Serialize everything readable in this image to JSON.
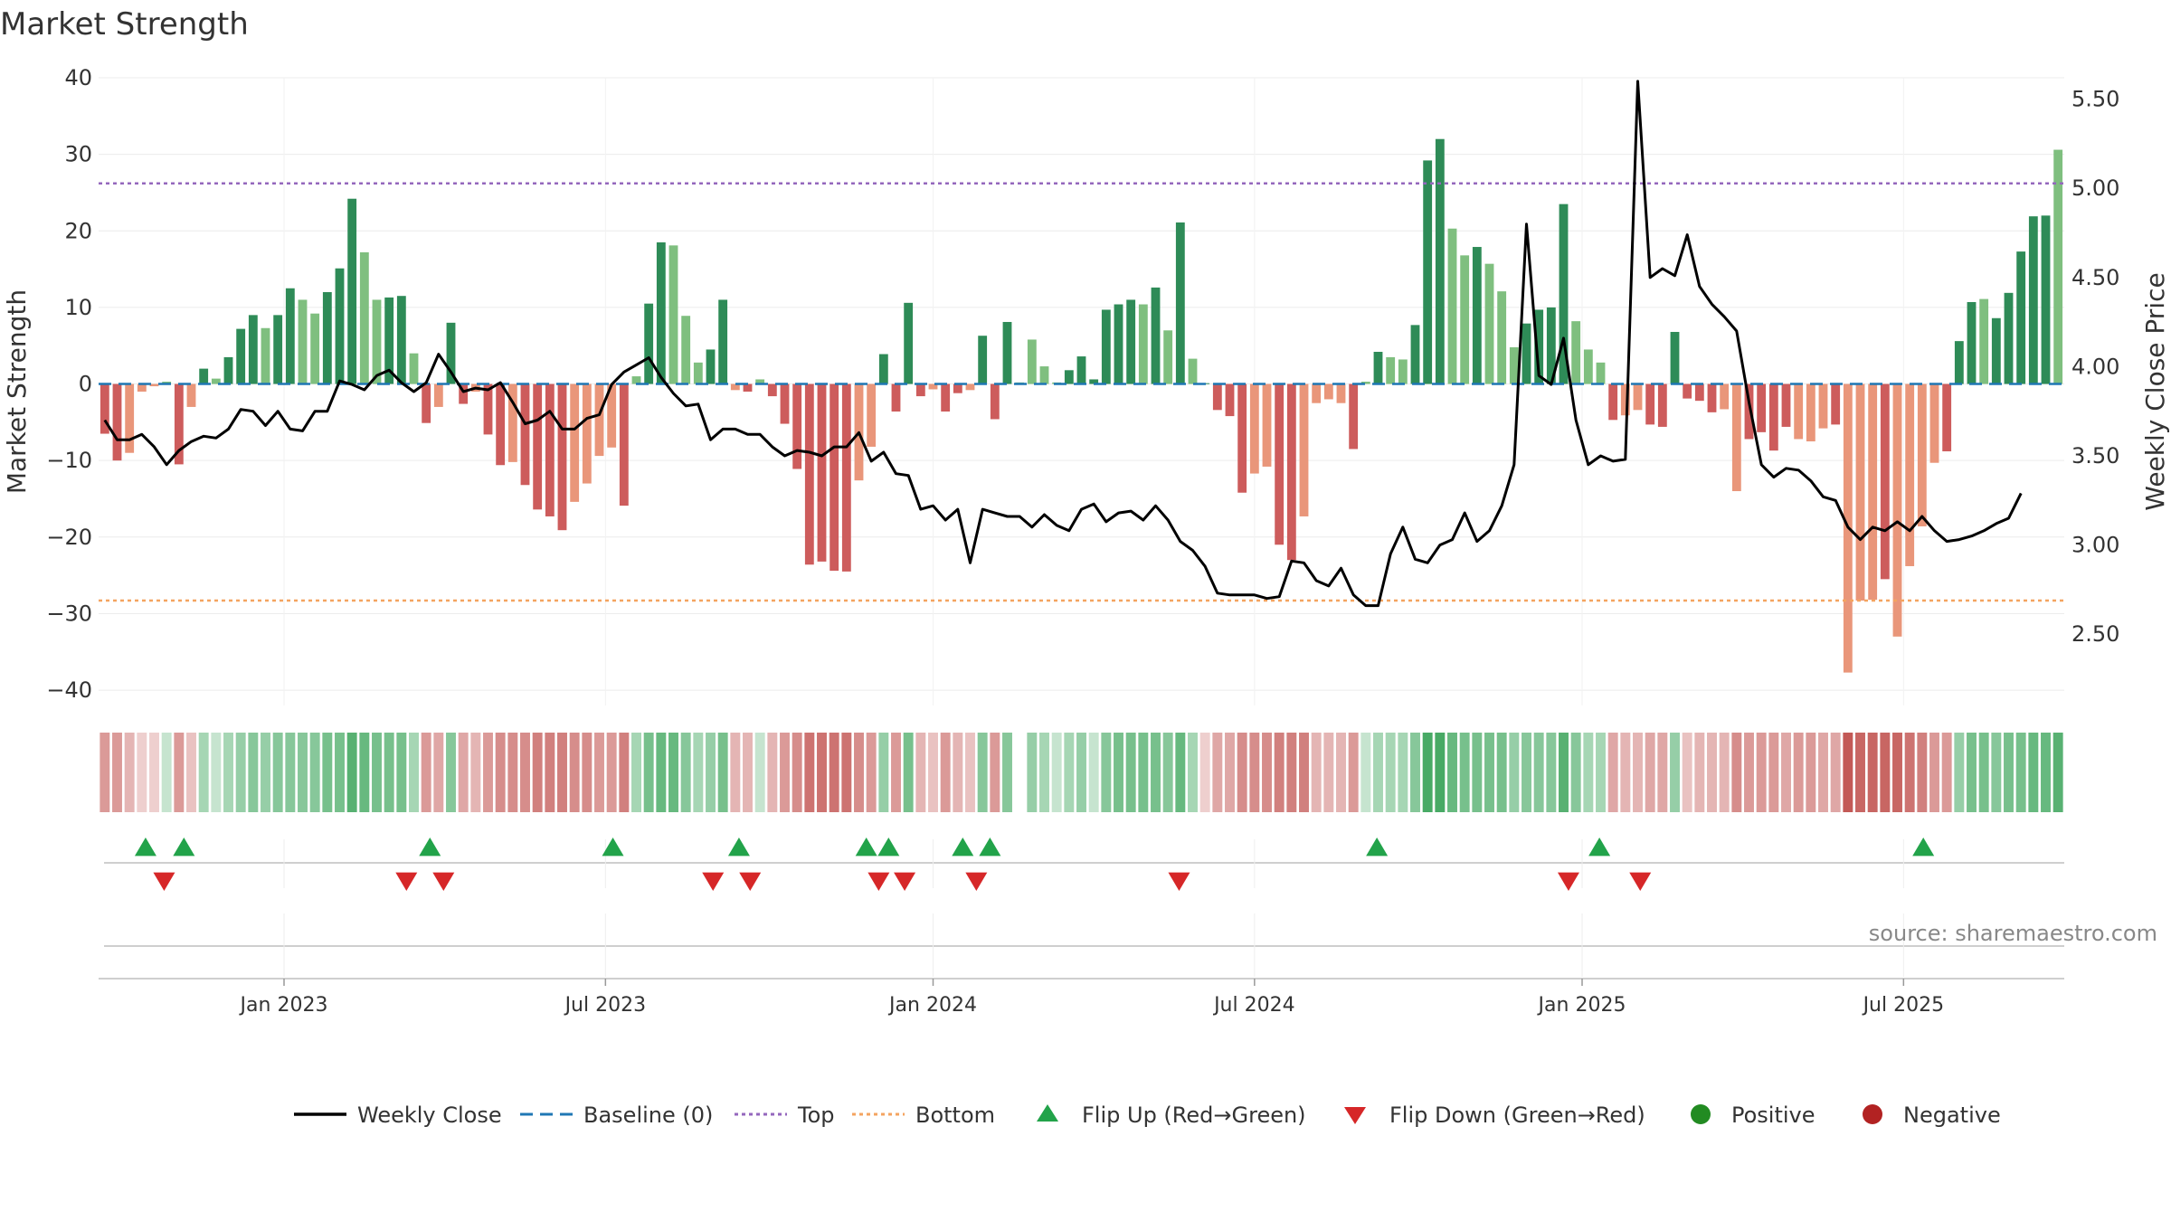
{
  "title": "Market Strength",
  "source": "source: sharemaestro.com",
  "colors": {
    "pos_dark": "#2e8b57",
    "pos_light": "#7fbf7f",
    "neg_dark": "#cd5c5c",
    "neg_light": "#e9967a",
    "close": "#000000",
    "baseline": "#1f77b4",
    "top": "#9467bd",
    "bottom": "#f4a460",
    "flip_up": "#22a34a",
    "flip_down": "#d62728",
    "positive": "#228b22",
    "negative": "#b22222"
  },
  "chart_data": {
    "type": "bar",
    "ylabel": "Market Strength",
    "ylabel_right": "Weekly Close Price",
    "ylim": [
      -42,
      40
    ],
    "ylim_right": [
      2.1,
      5.62
    ],
    "y_ticks": [
      40,
      30,
      20,
      10,
      0,
      -10,
      -20,
      -30,
      -40
    ],
    "y_tick_labels": [
      "40",
      "30",
      "20",
      "10",
      "0",
      "−10",
      "−20",
      "−30",
      "−40"
    ],
    "y_right_ticks": [
      5.5,
      5.0,
      4.5,
      4.0,
      3.5,
      3.0,
      2.5
    ],
    "y_right_tick_labels": [
      "5.50",
      "5.00",
      "4.50",
      "4.00",
      "3.50",
      "3.00",
      "2.50"
    ],
    "x_ticks": [
      {
        "label": "Jan 2023",
        "week": 15
      },
      {
        "label": "Jul 2023",
        "week": 41
      },
      {
        "label": "Jan 2024",
        "week": 67.5
      },
      {
        "label": "Jul 2024",
        "week": 93.5
      },
      {
        "label": "Jan 2025",
        "week": 120
      },
      {
        "label": "Jul 2025",
        "week": 146
      }
    ],
    "top_level": 26.2,
    "bottom_level": -28.3,
    "baseline": 0,
    "strength": [
      -6.5,
      -10,
      -9,
      -1,
      -0.3,
      0.3,
      -10.5,
      -3,
      2,
      0.7,
      3.5,
      7.2,
      9,
      7.3,
      9,
      12.5,
      11,
      9.2,
      12,
      15.1,
      24.2,
      17.2,
      11,
      11.3,
      11.5,
      4,
      -5.1,
      -3,
      8,
      -2.6,
      -1,
      -6.6,
      -10.6,
      -10.2,
      -13.2,
      -16.4,
      -17.3,
      -19.1,
      -15.4,
      -13,
      -9.4,
      -8.3,
      -15.9,
      1,
      10.5,
      18.5,
      18.1,
      8.9,
      2.8,
      4.5,
      11,
      -0.8,
      -1,
      0.6,
      -1.6,
      -5.2,
      -11.1,
      -23.6,
      -23.2,
      -24.4,
      -24.5,
      -12.6,
      -8.2,
      3.9,
      -3.6,
      10.6,
      -1.6,
      -0.7,
      -3.6,
      -1.2,
      -0.8,
      6.3,
      -4.6,
      8.1,
      0.2,
      5.8,
      2.3,
      0.2,
      1.8,
      3.6,
      0.6,
      9.7,
      10.4,
      11,
      10.4,
      12.6,
      7,
      21.1,
      3.3,
      0.1,
      -3.4,
      -4.2,
      -14.2,
      -11.7,
      -10.8,
      -21,
      -23,
      -17.3,
      -2.5,
      -2,
      -2.5,
      -8.5,
      0.3,
      4.2,
      3.5,
      3.2,
      7.7,
      29.2,
      32,
      20.3,
      16.8,
      17.9,
      15.7,
      12.1,
      4.8,
      7.9,
      9.7,
      10,
      23.5,
      8.2,
      4.5,
      2.8,
      -4.7,
      -4.1,
      -3.4,
      -5.3,
      -5.6,
      6.8,
      -1.9,
      -2.2,
      -3.7,
      -3.3,
      -14,
      -7.2,
      -6.3,
      -8.7,
      -5.6,
      -7.2,
      -7.5,
      -5.8,
      -5.3,
      -37.7,
      -28.3,
      -28.2,
      -25.5,
      -33,
      -23.8,
      -18.6,
      -10.3,
      -8.8,
      5.6,
      10.7,
      11.1,
      8.6,
      11.9,
      17.3,
      21.9,
      22,
      30.6
    ],
    "strength_shade": [
      1,
      1,
      0,
      0,
      0,
      0,
      1,
      0,
      1,
      0,
      1,
      1,
      1,
      0,
      1,
      1,
      0,
      0,
      1,
      1,
      1,
      0,
      0,
      1,
      1,
      0,
      1,
      0,
      1,
      1,
      0,
      1,
      1,
      0,
      1,
      1,
      1,
      1,
      0,
      0,
      0,
      0,
      1,
      0,
      1,
      1,
      0,
      0,
      0,
      1,
      1,
      0,
      1,
      0,
      1,
      1,
      1,
      1,
      1,
      1,
      1,
      0,
      0,
      1,
      1,
      1,
      1,
      0,
      1,
      1,
      0,
      1,
      1,
      1,
      0,
      0,
      0,
      0,
      1,
      1,
      1,
      1,
      1,
      1,
      0,
      1,
      0,
      1,
      0,
      1,
      1,
      1,
      1,
      0,
      0,
      1,
      1,
      0,
      0,
      0,
      0,
      1,
      0,
      1,
      0,
      0,
      1,
      1,
      1,
      0,
      0,
      1,
      0,
      0,
      0,
      1,
      1,
      1,
      1,
      0,
      0,
      0,
      1,
      0,
      0,
      1,
      1,
      1,
      1,
      1,
      1,
      0,
      0,
      1,
      1,
      1,
      1,
      0,
      0,
      0,
      1,
      0,
      0,
      0,
      1,
      0,
      0,
      0,
      0,
      1,
      1,
      1,
      0,
      1,
      1,
      1,
      1,
      1
    ],
    "weekly_close": [
      3.7,
      3.59,
      3.59,
      3.62,
      3.55,
      3.45,
      3.53,
      3.58,
      3.61,
      3.6,
      3.65,
      3.76,
      3.75,
      3.67,
      3.75,
      3.65,
      3.64,
      3.75,
      3.75,
      3.92,
      3.9,
      3.87,
      3.95,
      3.98,
      3.91,
      3.86,
      3.91,
      4.07,
      3.97,
      3.86,
      3.88,
      3.87,
      3.91,
      3.8,
      3.68,
      3.7,
      3.75,
      3.65,
      3.65,
      3.71,
      3.73,
      3.9,
      3.97,
      4.01,
      4.05,
      3.94,
      3.85,
      3.78,
      3.79,
      3.59,
      3.65,
      3.65,
      3.62,
      3.62,
      3.55,
      3.5,
      3.53,
      3.52,
      3.5,
      3.55,
      3.55,
      3.63,
      3.47,
      3.52,
      3.4,
      3.39,
      3.2,
      3.22,
      3.14,
      3.2,
      2.9,
      3.2,
      3.18,
      3.16,
      3.16,
      3.1,
      3.17,
      3.11,
      3.08,
      3.2,
      3.23,
      3.13,
      3.18,
      3.19,
      3.14,
      3.22,
      3.14,
      3.02,
      2.97,
      2.88,
      2.73,
      2.72,
      2.72,
      2.72,
      2.7,
      2.71,
      2.91,
      2.9,
      2.8,
      2.77,
      2.87,
      2.72,
      2.66,
      2.66,
      2.95,
      3.1,
      2.92,
      2.9,
      3.0,
      3.03,
      3.18,
      3.02,
      3.08,
      3.22,
      3.45,
      4.8,
      3.95,
      3.9,
      4.16,
      3.7,
      3.45,
      3.5,
      3.47,
      3.48,
      5.6,
      4.5,
      4.55,
      4.51,
      4.74,
      4.45,
      4.35,
      4.28,
      4.2,
      3.8,
      3.45,
      3.38,
      3.43,
      3.42,
      3.36,
      3.27,
      3.25,
      3.1,
      3.03,
      3.1,
      3.08,
      3.13,
      3.08,
      3.16,
      3.08,
      3.02,
      3.03,
      3.05,
      3.08,
      3.12,
      3.15,
      3.29
    ],
    "heat_strip": [
      -0.5,
      -0.5,
      -0.3,
      -0.1,
      -0.1,
      0.1,
      -0.5,
      -0.2,
      0.3,
      0.1,
      0.3,
      0.4,
      0.5,
      0.4,
      0.5,
      0.5,
      0.5,
      0.5,
      0.6,
      0.6,
      0.8,
      0.7,
      0.6,
      0.6,
      0.6,
      0.3,
      -0.5,
      -0.4,
      0.5,
      -0.4,
      -0.3,
      -0.5,
      -0.6,
      -0.6,
      -0.6,
      -0.7,
      -0.7,
      -0.7,
      -0.6,
      -0.6,
      -0.5,
      -0.5,
      -0.7,
      0.3,
      0.6,
      0.7,
      0.7,
      0.5,
      0.3,
      0.4,
      0.6,
      -0.3,
      -0.3,
      0.1,
      -0.3,
      -0.5,
      -0.6,
      -0.8,
      -0.8,
      -0.8,
      -0.8,
      -0.6,
      -0.5,
      0.4,
      -0.5,
      0.6,
      -0.3,
      -0.2,
      -0.5,
      -0.3,
      -0.2,
      0.5,
      -0.5,
      0.5,
      0,
      0.4,
      0.3,
      0.1,
      0.3,
      0.4,
      0.1,
      0.5,
      0.6,
      0.6,
      0.6,
      0.6,
      0.5,
      0.7,
      0.3,
      -0.1,
      -0.4,
      -0.4,
      -0.6,
      -0.6,
      -0.6,
      -0.7,
      -0.7,
      -0.7,
      -0.3,
      -0.3,
      -0.3,
      -0.5,
      0.1,
      0.3,
      0.3,
      0.3,
      0.5,
      0.9,
      0.9,
      0.7,
      0.6,
      0.6,
      0.6,
      0.6,
      0.4,
      0.5,
      0.5,
      0.5,
      0.8,
      0.5,
      0.3,
      0.3,
      -0.4,
      -0.3,
      -0.3,
      -0.4,
      -0.4,
      0.4,
      -0.2,
      -0.3,
      -0.3,
      -0.3,
      -0.6,
      -0.5,
      -0.5,
      -0.5,
      -0.4,
      -0.5,
      -0.5,
      -0.4,
      -0.4,
      -1,
      -0.9,
      -0.9,
      -0.9,
      -0.9,
      -0.8,
      -0.7,
      -0.5,
      -0.5,
      0.4,
      0.6,
      0.6,
      0.5,
      0.6,
      0.6,
      0.7,
      0.7,
      0.8
    ],
    "flip_up_weeks": [
      3.8,
      6.9,
      26.8,
      41.6,
      51.8,
      62.1,
      63.9,
      69.9,
      72.1,
      103.4,
      121.4,
      147.6
    ],
    "flip_down_weeks": [
      5.3,
      24.9,
      27.9,
      49.7,
      52.7,
      63.1,
      65.2,
      71,
      87.4,
      118.9,
      124.7
    ]
  },
  "legend": [
    {
      "label": "Weekly Close",
      "key": "close",
      "glyph": "line"
    },
    {
      "label": "Baseline (0)",
      "key": "baseline",
      "glyph": "dash"
    },
    {
      "label": "Top",
      "key": "top",
      "glyph": "dot"
    },
    {
      "label": "Bottom",
      "key": "bottom",
      "glyph": "dot"
    },
    {
      "label": "Flip Up (Red→Green)",
      "key": "flip_up",
      "glyph": "tri-up"
    },
    {
      "label": "Flip Down (Green→Red)",
      "key": "flip_down",
      "glyph": "tri-down"
    },
    {
      "label": "Positive",
      "key": "positive",
      "glyph": "circle"
    },
    {
      "label": "Negative",
      "key": "negative",
      "glyph": "circle"
    }
  ]
}
